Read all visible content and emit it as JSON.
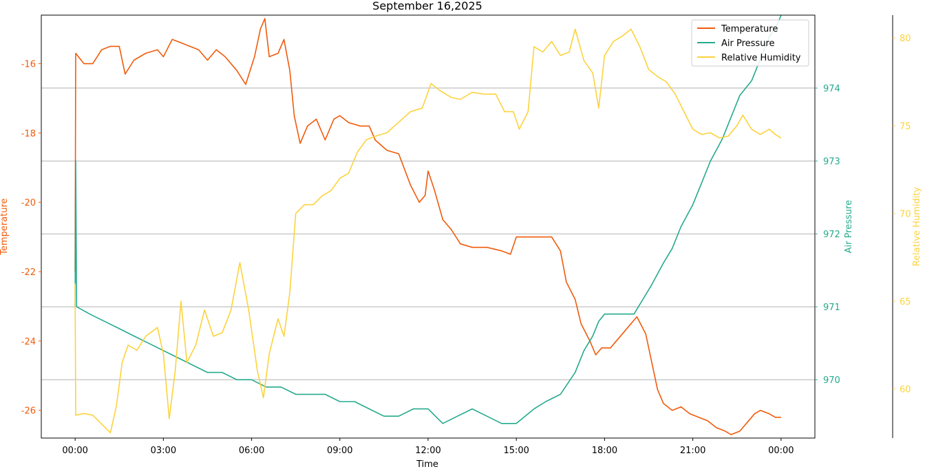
{
  "chart_data": {
    "type": "line",
    "title": "September 16,2025",
    "xlabel": "Time",
    "x_ticks": [
      "00:00",
      "03:00",
      "06:00",
      "09:00",
      "12:00",
      "15:00",
      "18:00",
      "21:00",
      "00:00"
    ],
    "x_range_hours": [
      -1.15,
      25.15
    ],
    "grid": "horizontal lines at Air Pressure ticks",
    "legend_position": "top-right",
    "axes": {
      "temperature": {
        "label": "Temperature",
        "color": "#f05a0a",
        "range": [
          -26.8,
          -14.6
        ],
        "ticks": [
          -26,
          -24,
          -22,
          -20,
          -18,
          -16
        ]
      },
      "pressure": {
        "label": "Air Pressure",
        "color": "#24aa8c",
        "range": [
          969.2,
          975.0
        ],
        "ticks": [
          970,
          971,
          972,
          973,
          974
        ]
      },
      "humidity": {
        "label": "Relative Humidity",
        "color": "#fcd23c",
        "range": [
          57.2,
          81.3
        ],
        "ticks": [
          60,
          65,
          70,
          75,
          80
        ]
      }
    },
    "series": [
      {
        "name": "Temperature",
        "axis": "temperature",
        "color": "#f05a0a",
        "points": [
          [
            0.0,
            -22.0
          ],
          [
            0.02,
            -15.7
          ],
          [
            0.3,
            -16.0
          ],
          [
            0.6,
            -16.0
          ],
          [
            0.9,
            -15.6
          ],
          [
            1.2,
            -15.5
          ],
          [
            1.5,
            -15.5
          ],
          [
            1.7,
            -16.3
          ],
          [
            2.0,
            -15.9
          ],
          [
            2.4,
            -15.7
          ],
          [
            2.8,
            -15.6
          ],
          [
            3.0,
            -15.8
          ],
          [
            3.3,
            -15.3
          ],
          [
            3.6,
            -15.4
          ],
          [
            4.2,
            -15.6
          ],
          [
            4.5,
            -15.9
          ],
          [
            4.8,
            -15.6
          ],
          [
            5.1,
            -15.8
          ],
          [
            5.5,
            -16.2
          ],
          [
            5.8,
            -16.6
          ],
          [
            6.1,
            -15.8
          ],
          [
            6.3,
            -15.0
          ],
          [
            6.45,
            -14.7
          ],
          [
            6.6,
            -15.8
          ],
          [
            6.9,
            -15.7
          ],
          [
            7.1,
            -15.3
          ],
          [
            7.3,
            -16.2
          ],
          [
            7.45,
            -17.5
          ],
          [
            7.65,
            -18.3
          ],
          [
            7.9,
            -17.8
          ],
          [
            8.2,
            -17.6
          ],
          [
            8.5,
            -18.2
          ],
          [
            8.8,
            -17.6
          ],
          [
            9.0,
            -17.5
          ],
          [
            9.3,
            -17.7
          ],
          [
            9.7,
            -17.8
          ],
          [
            10.0,
            -17.8
          ],
          [
            10.2,
            -18.2
          ],
          [
            10.6,
            -18.5
          ],
          [
            11.0,
            -18.6
          ],
          [
            11.4,
            -19.5
          ],
          [
            11.7,
            -20.0
          ],
          [
            11.9,
            -19.8
          ],
          [
            12.0,
            -19.1
          ],
          [
            12.2,
            -19.6
          ],
          [
            12.5,
            -20.5
          ],
          [
            12.8,
            -20.8
          ],
          [
            13.1,
            -21.2
          ],
          [
            13.5,
            -21.3
          ],
          [
            14.0,
            -21.3
          ],
          [
            14.5,
            -21.4
          ],
          [
            14.8,
            -21.5
          ],
          [
            15.0,
            -21.0
          ],
          [
            15.5,
            -21.0
          ],
          [
            16.0,
            -21.0
          ],
          [
            16.2,
            -21.0
          ],
          [
            16.5,
            -21.4
          ],
          [
            16.7,
            -22.3
          ],
          [
            17.0,
            -22.8
          ],
          [
            17.2,
            -23.5
          ],
          [
            17.5,
            -24.0
          ],
          [
            17.7,
            -24.4
          ],
          [
            17.9,
            -24.2
          ],
          [
            18.2,
            -24.2
          ],
          [
            18.5,
            -23.9
          ],
          [
            18.8,
            -23.6
          ],
          [
            19.1,
            -23.3
          ],
          [
            19.4,
            -23.8
          ],
          [
            19.6,
            -24.6
          ],
          [
            19.8,
            -25.4
          ],
          [
            20.0,
            -25.8
          ],
          [
            20.3,
            -26.0
          ],
          [
            20.6,
            -25.9
          ],
          [
            20.9,
            -26.1
          ],
          [
            21.2,
            -26.2
          ],
          [
            21.5,
            -26.3
          ],
          [
            21.8,
            -26.5
          ],
          [
            22.1,
            -26.6
          ],
          [
            22.3,
            -26.7
          ],
          [
            22.6,
            -26.6
          ],
          [
            22.9,
            -26.3
          ],
          [
            23.1,
            -26.1
          ],
          [
            23.3,
            -26.0
          ],
          [
            23.6,
            -26.1
          ],
          [
            23.8,
            -26.2
          ],
          [
            24.0,
            -26.2
          ]
        ]
      },
      {
        "name": "Air Pressure",
        "axis": "pressure",
        "color": "#24aa8c",
        "points": [
          [
            0.0,
            971.0
          ],
          [
            0.02,
            973.0
          ],
          [
            0.05,
            971.0
          ],
          [
            0.5,
            970.9
          ],
          [
            1.0,
            970.8
          ],
          [
            1.5,
            970.7
          ],
          [
            2.0,
            970.6
          ],
          [
            2.5,
            970.5
          ],
          [
            3.0,
            970.4
          ],
          [
            3.5,
            970.3
          ],
          [
            4.0,
            970.2
          ],
          [
            4.5,
            970.1
          ],
          [
            5.0,
            970.1
          ],
          [
            5.5,
            970.0
          ],
          [
            6.0,
            970.0
          ],
          [
            6.5,
            969.9
          ],
          [
            7.0,
            969.9
          ],
          [
            7.5,
            969.8
          ],
          [
            8.0,
            969.8
          ],
          [
            8.5,
            969.8
          ],
          [
            9.0,
            969.7
          ],
          [
            9.5,
            969.7
          ],
          [
            10.0,
            969.6
          ],
          [
            10.5,
            969.5
          ],
          [
            11.0,
            969.5
          ],
          [
            11.5,
            969.6
          ],
          [
            12.0,
            969.6
          ],
          [
            12.5,
            969.4
          ],
          [
            13.0,
            969.5
          ],
          [
            13.5,
            969.6
          ],
          [
            14.0,
            969.5
          ],
          [
            14.5,
            969.4
          ],
          [
            15.0,
            969.4
          ],
          [
            15.3,
            969.5
          ],
          [
            15.6,
            969.6
          ],
          [
            16.0,
            969.7
          ],
          [
            16.5,
            969.8
          ],
          [
            17.0,
            970.1
          ],
          [
            17.3,
            970.4
          ],
          [
            17.6,
            970.6
          ],
          [
            17.8,
            970.8
          ],
          [
            18.0,
            970.9
          ],
          [
            18.5,
            970.9
          ],
          [
            19.0,
            970.9
          ],
          [
            19.3,
            971.1
          ],
          [
            19.6,
            971.3
          ],
          [
            20.0,
            971.6
          ],
          [
            20.3,
            971.8
          ],
          [
            20.6,
            972.1
          ],
          [
            21.0,
            972.4
          ],
          [
            21.3,
            972.7
          ],
          [
            21.6,
            973.0
          ],
          [
            22.0,
            973.3
          ],
          [
            22.3,
            973.6
          ],
          [
            22.6,
            973.9
          ],
          [
            23.0,
            974.1
          ],
          [
            23.3,
            974.4
          ],
          [
            23.6,
            974.7
          ],
          [
            23.9,
            974.9
          ],
          [
            24.0,
            975.0
          ]
        ]
      },
      {
        "name": "Relative Humidity",
        "axis": "humidity",
        "color": "#fcd23c",
        "points": [
          [
            0.0,
            66.0
          ],
          [
            0.02,
            58.5
          ],
          [
            0.3,
            58.6
          ],
          [
            0.6,
            58.5
          ],
          [
            0.9,
            58.0
          ],
          [
            1.2,
            57.5
          ],
          [
            1.4,
            59.0
          ],
          [
            1.6,
            61.5
          ],
          [
            1.8,
            62.5
          ],
          [
            2.1,
            62.2
          ],
          [
            2.4,
            63.0
          ],
          [
            2.8,
            63.5
          ],
          [
            3.0,
            62.0
          ],
          [
            3.2,
            58.3
          ],
          [
            3.4,
            61.0
          ],
          [
            3.6,
            65.0
          ],
          [
            3.8,
            61.5
          ],
          [
            4.1,
            62.5
          ],
          [
            4.4,
            64.5
          ],
          [
            4.7,
            63.0
          ],
          [
            5.0,
            63.2
          ],
          [
            5.3,
            64.5
          ],
          [
            5.6,
            67.2
          ],
          [
            5.9,
            64.5
          ],
          [
            6.2,
            61.0
          ],
          [
            6.4,
            59.5
          ],
          [
            6.6,
            62.0
          ],
          [
            6.9,
            64.0
          ],
          [
            7.1,
            63.0
          ],
          [
            7.3,
            65.5
          ],
          [
            7.5,
            70.0
          ],
          [
            7.8,
            70.5
          ],
          [
            8.1,
            70.5
          ],
          [
            8.4,
            71.0
          ],
          [
            8.7,
            71.3
          ],
          [
            9.0,
            72.0
          ],
          [
            9.3,
            72.3
          ],
          [
            9.6,
            73.5
          ],
          [
            9.9,
            74.2
          ],
          [
            10.2,
            74.4
          ],
          [
            10.6,
            74.6
          ],
          [
            11.0,
            75.2
          ],
          [
            11.4,
            75.8
          ],
          [
            11.8,
            76.0
          ],
          [
            12.1,
            77.4
          ],
          [
            12.4,
            77.0
          ],
          [
            12.8,
            76.6
          ],
          [
            13.1,
            76.5
          ],
          [
            13.5,
            76.9
          ],
          [
            13.9,
            76.8
          ],
          [
            14.3,
            76.8
          ],
          [
            14.6,
            75.8
          ],
          [
            14.9,
            75.8
          ],
          [
            15.1,
            74.8
          ],
          [
            15.4,
            75.8
          ],
          [
            15.6,
            79.5
          ],
          [
            15.9,
            79.2
          ],
          [
            16.2,
            79.8
          ],
          [
            16.5,
            79.0
          ],
          [
            16.8,
            79.2
          ],
          [
            17.0,
            80.5
          ],
          [
            17.3,
            78.7
          ],
          [
            17.6,
            78.0
          ],
          [
            17.8,
            76.0
          ],
          [
            18.0,
            79.0
          ],
          [
            18.3,
            79.8
          ],
          [
            18.6,
            80.1
          ],
          [
            18.9,
            80.5
          ],
          [
            19.2,
            79.5
          ],
          [
            19.5,
            78.2
          ],
          [
            19.8,
            77.8
          ],
          [
            20.1,
            77.5
          ],
          [
            20.4,
            76.8
          ],
          [
            20.7,
            75.8
          ],
          [
            21.0,
            74.8
          ],
          [
            21.3,
            74.5
          ],
          [
            21.6,
            74.6
          ],
          [
            21.9,
            74.3
          ],
          [
            22.2,
            74.4
          ],
          [
            22.5,
            75.0
          ],
          [
            22.7,
            75.6
          ],
          [
            23.0,
            74.8
          ],
          [
            23.3,
            74.5
          ],
          [
            23.6,
            74.8
          ],
          [
            23.8,
            74.5
          ],
          [
            24.0,
            74.3
          ]
        ]
      }
    ]
  }
}
